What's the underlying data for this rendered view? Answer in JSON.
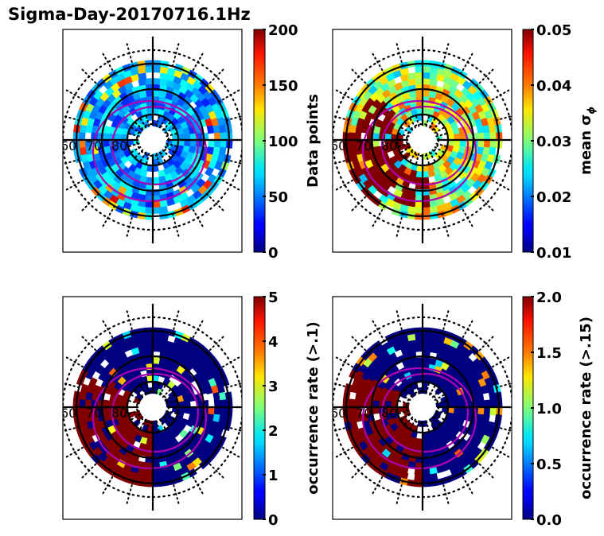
{
  "chart_data": {
    "type": "heatmap",
    "title": "Sigma-Day-20170716.1Hz",
    "projection": "polar (magnetic latitude / MLT dial plot)",
    "radial_labels": [
      "60",
      "70",
      "80"
    ],
    "colormap": "jet",
    "panels": [
      {
        "id": "data-points",
        "colorbar_label": "Data points",
        "vmin": 0,
        "vmax": 200,
        "ticks": [
          "0",
          "50",
          "100",
          "150",
          "200"
        ],
        "description": "mostly blue/cyan counts (0-100) with scattered green/yellow/orange bins in outer ring",
        "style_seed": 1
      },
      {
        "id": "mean-sigma-phi",
        "colorbar_label": "mean σ",
        "colorbar_label_sub": "ϕ",
        "vmin": 0.01,
        "vmax": 0.05,
        "ticks": [
          "0.01",
          "0.02",
          "0.03",
          "0.04",
          "0.05"
        ],
        "description": "high values (dark red) on dawn/left and lower sector, cyan/green on right/top",
        "style_seed": 2
      },
      {
        "id": "occurrence-rate-0.1",
        "colorbar_label": "occurrence rate (>.1)",
        "vmin": 0,
        "vmax": 5,
        "ticks": [
          "0",
          "1",
          "2",
          "3",
          "4",
          "5"
        ],
        "description": "mostly dark blue (0) with dark red (>=5) on left and lower sector",
        "style_seed": 3
      },
      {
        "id": "occurrence-rate-0.15",
        "colorbar_label": "occurrence rate (>.15)",
        "vmin": 0.0,
        "vmax": 2.0,
        "ticks": [
          "0.0",
          "0.5",
          "1.0",
          "1.5",
          "2.0"
        ],
        "description": "mostly dark blue (0) with dark red (>=2) on left and lower sector",
        "style_seed": 4
      }
    ],
    "overlays": {
      "solid_circles_mlat": [
        "60",
        "70",
        "80"
      ],
      "dotted_circles": "outer boundary and pole region",
      "magenta_ovals": 2
    }
  }
}
